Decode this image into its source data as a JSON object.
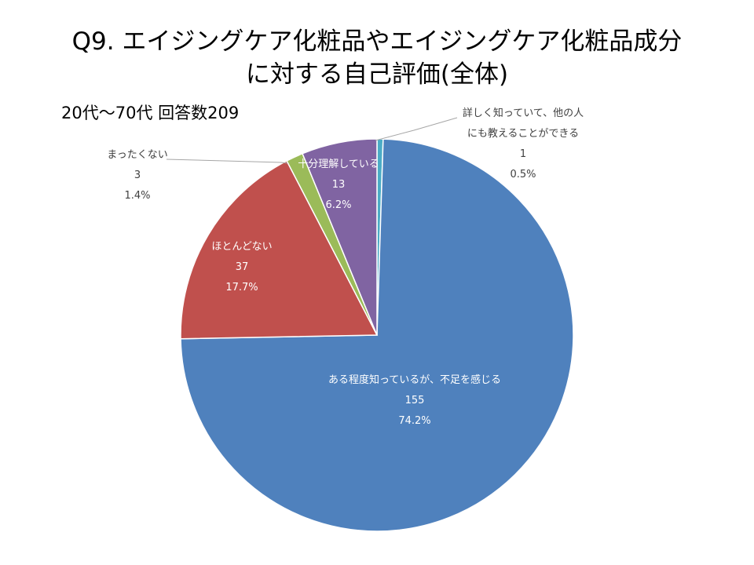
{
  "title_line1": "Q9. エイジングケア化粧品やエイジングケア化粧品成分",
  "title_line2": "に対する自己評価(全体)",
  "subtitle": "20代～70代  回答数209",
  "chart_data": {
    "type": "pie",
    "start_angle_deg": 0,
    "direction": "clockwise",
    "slices": [
      {
        "label": "詳しく知っていて、他の人にも教えることができる",
        "label_lines": [
          "詳しく知っていて、他の人",
          "にも教えることができる"
        ],
        "count": "1",
        "percent_text": "0.5%",
        "value": 0.5,
        "color": "#4BACC6",
        "label_color": "#404040"
      },
      {
        "label": "ある程度知っているが、不足を感じる",
        "label_lines": [
          "ある程度知っているが、不足を感じる"
        ],
        "count": "155",
        "percent_text": "74.2%",
        "value": 74.2,
        "color": "#4F81BD",
        "label_color": "#ffffff"
      },
      {
        "label": "ほとんどない",
        "label_lines": [
          "ほとんどない"
        ],
        "count": "37",
        "percent_text": "17.7%",
        "value": 17.7,
        "color": "#C0504D",
        "label_color": "#ffffff"
      },
      {
        "label": "まったくない",
        "label_lines": [
          "まったくない"
        ],
        "count": "3",
        "percent_text": "1.4%",
        "value": 1.4,
        "color": "#9BBB59",
        "label_color": "#404040"
      },
      {
        "label": "十分理解している",
        "label_lines": [
          "十分理解している"
        ],
        "count": "13",
        "percent_text": "6.2%",
        "value": 6.2,
        "color": "#8064A2",
        "label_color": "#ffffff"
      }
    ]
  }
}
